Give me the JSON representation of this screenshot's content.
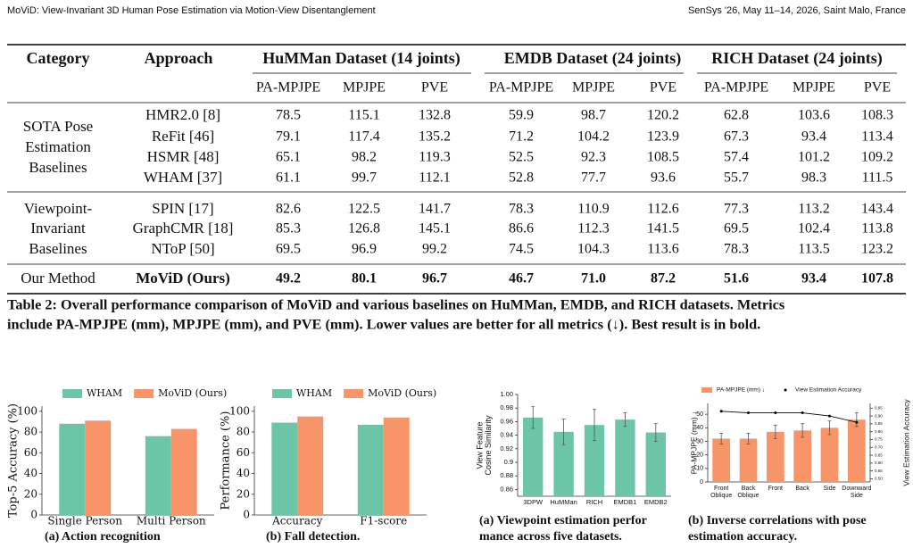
{
  "header": {
    "left": "MoViD: View-Invariant 3D Human Pose Estimation via Motion-View Disentanglement",
    "right": "SenSys '26, May 11–14, 2026, Saint Malo, France"
  },
  "table": {
    "columns": [
      "Category",
      "Approach"
    ],
    "datasets": [
      "HuMMan Dataset (14 joints)",
      "EMDB Dataset (24 joints)",
      "RICH Dataset (24 joints)"
    ],
    "metrics": [
      "PA-MPJPE",
      "MPJPE",
      "PVE",
      "PA-MPJPE",
      "MPJPE",
      "PVE",
      "PA-MPJPE",
      "MPJPE",
      "PVE"
    ],
    "groups": [
      {
        "category": [
          "SOTA Pose",
          "Estimation",
          "Baselines"
        ],
        "rows": [
          {
            "approach": "HMR2.0 [8]",
            "values": [
              "78.5",
              "115.1",
              "132.8",
              "59.9",
              "98.7",
              "120.2",
              "62.8",
              "103.6",
              "108.3"
            ]
          },
          {
            "approach": "ReFit [46]",
            "values": [
              "79.1",
              "117.4",
              "135.2",
              "71.2",
              "104.2",
              "123.9",
              "67.3",
              "93.4",
              "113.4"
            ]
          },
          {
            "approach": "HSMR [48]",
            "values": [
              "65.1",
              "98.2",
              "119.3",
              "52.5",
              "92.3",
              "108.5",
              "57.4",
              "101.2",
              "109.2"
            ]
          },
          {
            "approach": "WHAM [37]",
            "values": [
              "61.1",
              "99.7",
              "112.1",
              "52.8",
              "77.7",
              "93.6",
              "55.7",
              "98.3",
              "111.5"
            ]
          }
        ]
      },
      {
        "category": [
          "Viewpoint-",
          "Invariant",
          "Baselines"
        ],
        "rows": [
          {
            "approach": "SPIN [17]",
            "values": [
              "82.6",
              "122.5",
              "141.7",
              "78.3",
              "110.9",
              "112.6",
              "77.3",
              "113.2",
              "143.4"
            ]
          },
          {
            "approach": "GraphCMR [18]",
            "values": [
              "85.3",
              "126.8",
              "145.1",
              "86.6",
              "112.3",
              "141.5",
              "69.5",
              "102.4",
              "113.8"
            ]
          },
          {
            "approach": "NToP [50]",
            "values": [
              "69.5",
              "96.9",
              "99.2",
              "74.5",
              "104.3",
              "113.6",
              "78.3",
              "113.5",
              "123.2"
            ]
          }
        ]
      },
      {
        "category": [
          "Our Method"
        ],
        "rows": [
          {
            "approach": "MoViD (Ours)",
            "values": [
              "49.2",
              "80.1",
              "96.7",
              "46.7",
              "71.0",
              "87.2",
              "51.6",
              "93.4",
              "107.8"
            ]
          }
        ]
      }
    ],
    "caption": [
      "Table 2: Overall performance comparison of MoViD and various baselines on HuMMan, EMDB, and RICH datasets. Metrics",
      "include PA-MPJPE (mm), MPJPE (mm), and PVE (mm). Lower values are better for all metrics (↓). Best result is in bold."
    ]
  },
  "chart_data": [
    {
      "type": "bar",
      "caption": [
        "(a) Action recognition"
      ],
      "ylabel": [
        "Top-5 Accuracy (%)"
      ],
      "categories": [
        "Single Person",
        "Multi Person"
      ],
      "series": [
        {
          "name": "WHAM",
          "color": "#6cc5a6",
          "values": [
            88,
            76
          ]
        },
        {
          "name": "MoViD (Ours)",
          "color": "#f79468",
          "values": [
            91,
            83
          ]
        }
      ],
      "ylim": [
        0,
        105
      ],
      "yticks": [
        0,
        20,
        40,
        60,
        80,
        100
      ]
    },
    {
      "type": "bar",
      "caption": [
        "(b) Fall detection."
      ],
      "ylabel": [
        "Performance (%)"
      ],
      "categories": [
        "Accuracy",
        "F1-score"
      ],
      "series": [
        {
          "name": "WHAM",
          "color": "#6cc5a6",
          "values": [
            89,
            87
          ]
        },
        {
          "name": "MoViD (Ours)",
          "color": "#f79468",
          "values": [
            95,
            94
          ]
        }
      ],
      "ylim": [
        0,
        105
      ],
      "yticks": [
        0,
        20,
        40,
        60,
        80,
        100
      ]
    },
    {
      "type": "bar",
      "caption": [
        "(a) Viewpoint estimation perfor",
        "mance across five datasets."
      ],
      "ylabel": [
        "View Feature",
        "Cosine Similarity"
      ],
      "categories": [
        "3DPW",
        "HuMMan",
        "RICH",
        "EMDB1",
        "EMDB2"
      ],
      "series": [
        {
          "color": "#6cc5a6",
          "values": [
            0.966,
            0.945,
            0.955,
            0.963,
            0.944
          ],
          "errors": [
            0.016,
            0.019,
            0.023,
            0.01,
            0.013
          ]
        }
      ],
      "ylim": [
        0.85,
        1.0
      ],
      "yticks": [
        0.86,
        0.88,
        0.9,
        0.92,
        0.94,
        0.96,
        0.98,
        {
          "value": 1.0,
          "label": "1.00"
        }
      ]
    },
    {
      "type": "bar",
      "caption": [
        "(b) Inverse correlations with pose",
        "estimation accuracy."
      ],
      "ylabel": [
        "PA-MPJPE (mm) ↓"
      ],
      "y2label": [
        "View Estimation Accuracy"
      ],
      "categories": [
        [
          "Front",
          "Oblique"
        ],
        [
          "Back",
          "Oblique"
        ],
        [
          "Front"
        ],
        [
          "Back"
        ],
        [
          "Side"
        ],
        [
          "Downward",
          "Side"
        ]
      ],
      "series": [
        {
          "name": "PA-MPJPE (mm) ↓",
          "color": "#f79468",
          "values": [
            32,
            32,
            37,
            38,
            40,
            46
          ],
          "errors": [
            4,
            4,
            5,
            5,
            5,
            5
          ]
        },
        {
          "name": "View Estimation Accuracy",
          "type": "line",
          "axis": "y2",
          "color": "#000000",
          "values": [
            0.93,
            0.92,
            0.92,
            0.92,
            0.9,
            0.86
          ]
        }
      ],
      "ylim": [
        0,
        58
      ],
      "yticks": [
        0,
        10,
        20,
        30,
        40,
        50
      ],
      "y2lim": [
        0.48,
        0.98
      ],
      "y2ticks": [
        {
          "value": 0.5,
          "label": "0.50"
        },
        0.55,
        {
          "value": 0.6,
          "label": "0.60"
        },
        0.65,
        {
          "value": 0.7,
          "label": "0.70"
        },
        0.75,
        {
          "value": 0.8,
          "label": "0.80"
        },
        0.85,
        {
          "value": 0.9,
          "label": "0.90"
        },
        0.95
      ]
    }
  ]
}
